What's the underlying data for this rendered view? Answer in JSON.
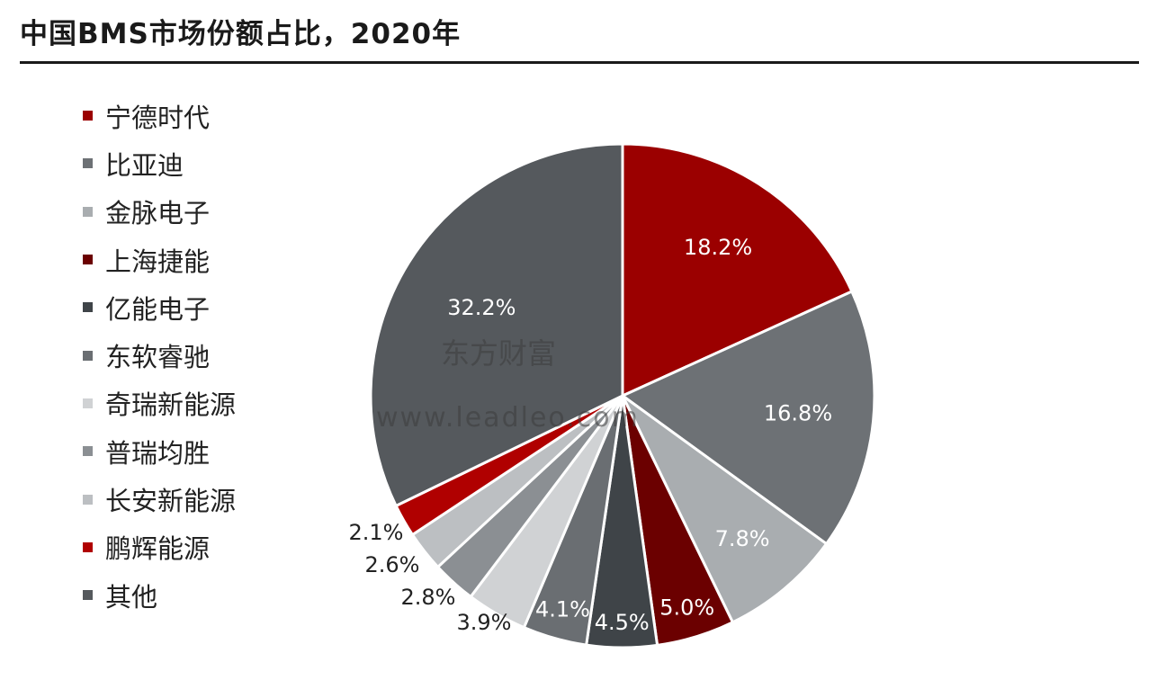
{
  "title": "中国BMS市场份额占比，2020年",
  "watermark": {
    "cn": "东方财富",
    "url": "www.leadleo.com"
  },
  "chart_data": {
    "type": "pie",
    "categories": [
      "宁德时代",
      "比亚迪",
      "金脉电子",
      "上海捷能",
      "亿能电子",
      "东软睿驰",
      "奇瑞新能源",
      "普瑞均胜",
      "长安新能源",
      "鹏辉能源",
      "其他"
    ],
    "values": [
      18.2,
      16.8,
      7.8,
      5.0,
      4.5,
      4.1,
      3.9,
      2.8,
      2.6,
      2.1,
      32.2
    ],
    "labels": [
      "18.2%",
      "16.8%",
      "7.8%",
      "5.0%",
      "4.5%",
      "4.1%",
      "3.9%",
      "2.8%",
      "2.6%",
      "2.1%",
      "32.2%"
    ],
    "colors": [
      "#9b0000",
      "#6d7175",
      "#a9adb0",
      "#6b0000",
      "#3f4448",
      "#6a6e72",
      "#d0d2d4",
      "#8b8f93",
      "#bcbfc2",
      "#b00000",
      "#55595d"
    ],
    "start": "12 o'clock",
    "direction": "clockwise",
    "legend_position": "left"
  }
}
